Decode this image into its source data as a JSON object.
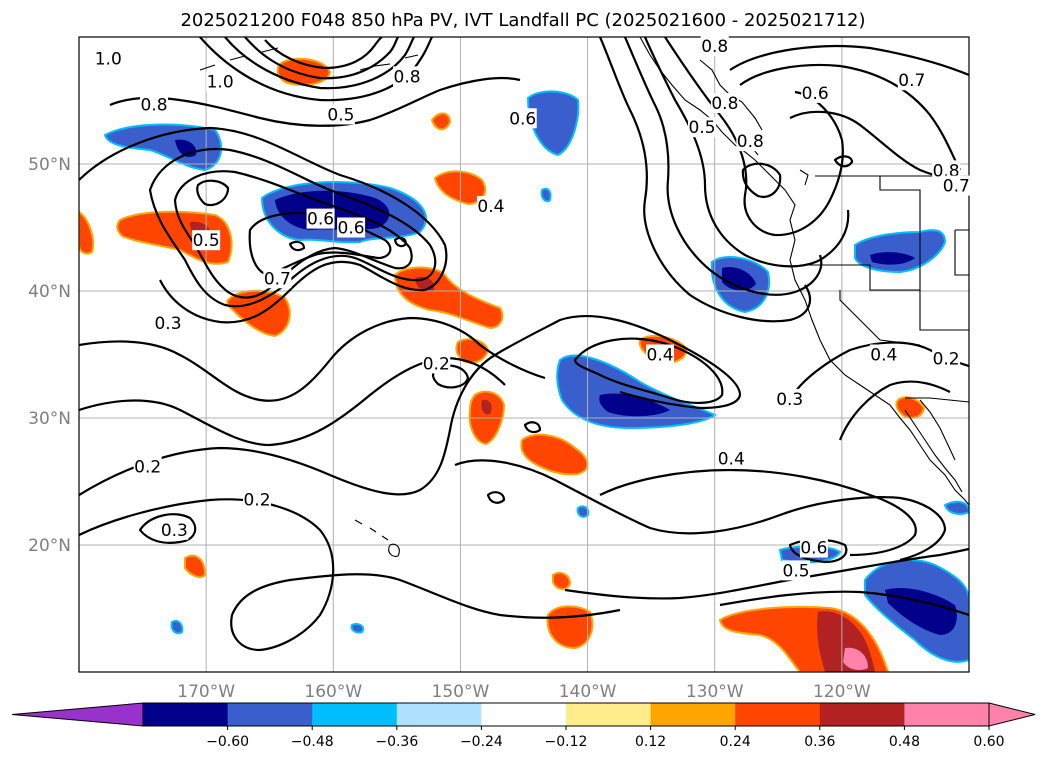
{
  "title": "2025021200 F048 850 hPa PV, IVT Landfall PC (2025021600 - 2025021712)",
  "lon_ticks": [
    {
      "value": -170,
      "label": "170°W"
    },
    {
      "value": -160,
      "label": "160°W"
    },
    {
      "value": -150,
      "label": "150°W"
    },
    {
      "value": -140,
      "label": "140°W"
    },
    {
      "value": -130,
      "label": "130°W"
    },
    {
      "value": -120,
      "label": "120°W"
    }
  ],
  "lat_ticks": [
    {
      "value": 20,
      "label": "20°N"
    },
    {
      "value": 30,
      "label": "30°N"
    },
    {
      "value": 40,
      "label": "40°N"
    },
    {
      "value": 50,
      "label": "50°N"
    }
  ],
  "extent": {
    "lon_min": -180,
    "lon_max": -110,
    "lat_min": 10,
    "lat_max": 60
  },
  "colorbar": {
    "colors": [
      "#9932cc",
      "#00008b",
      "#3a5fcd",
      "#00bfff",
      "#b0e2ff",
      "#ffffff",
      "#ffec8b",
      "#ffa500",
      "#ff4500",
      "#b22222",
      "#ff82ab",
      "#ff82ab"
    ],
    "tick_labels": [
      "−0.60",
      "−0.48",
      "−0.36",
      "−0.24",
      "−0.12",
      "0.12",
      "0.24",
      "0.36",
      "0.48",
      "0.60"
    ]
  },
  "contour_labels": [
    {
      "text": "1.0",
      "lon": -177.7,
      "lat": 58.3
    },
    {
      "text": "1.0",
      "lon": -168.9,
      "lat": 56.5
    },
    {
      "text": "0.8",
      "lon": -174.1,
      "lat": 54.7
    },
    {
      "text": "0.5",
      "lon": -159.4,
      "lat": 53.9
    },
    {
      "text": "0.8",
      "lon": -154.2,
      "lat": 56.9
    },
    {
      "text": "0.6",
      "lon": -145.1,
      "lat": 53.6
    },
    {
      "text": "0.8",
      "lon": -130.0,
      "lat": 59.3
    },
    {
      "text": "0.7",
      "lon": -114.5,
      "lat": 56.6
    },
    {
      "text": "0.6",
      "lon": -122.1,
      "lat": 55.6
    },
    {
      "text": "0.5",
      "lon": -131.0,
      "lat": 52.9
    },
    {
      "text": "0.8",
      "lon": -129.2,
      "lat": 54.8
    },
    {
      "text": "0.8",
      "lon": -127.2,
      "lat": 51.8
    },
    {
      "text": "0.8",
      "lon": -111.8,
      "lat": 49.5
    },
    {
      "text": "0.7",
      "lon": -111.0,
      "lat": 48.3
    },
    {
      "text": "0.4",
      "lon": -147.6,
      "lat": 46.7
    },
    {
      "text": "0.6",
      "lon": -161.0,
      "lat": 45.7
    },
    {
      "text": "0.6",
      "lon": -158.6,
      "lat": 45.0
    },
    {
      "text": "0.5",
      "lon": -170.0,
      "lat": 44.0
    },
    {
      "text": "0.7",
      "lon": -164.4,
      "lat": 41.0
    },
    {
      "text": "0.3",
      "lon": -173.0,
      "lat": 37.5
    },
    {
      "text": "0.2",
      "lon": -151.9,
      "lat": 34.3
    },
    {
      "text": "0.4",
      "lon": -134.3,
      "lat": 35.0
    },
    {
      "text": "0.4",
      "lon": -116.7,
      "lat": 35.0
    },
    {
      "text": "0.2",
      "lon": -111.8,
      "lat": 34.7
    },
    {
      "text": "0.3",
      "lon": -124.1,
      "lat": 31.5
    },
    {
      "text": "0.2",
      "lon": -174.6,
      "lat": 26.2
    },
    {
      "text": "0.2",
      "lon": -166.0,
      "lat": 23.6
    },
    {
      "text": "0.3",
      "lon": -172.5,
      "lat": 21.2
    },
    {
      "text": "0.4",
      "lon": -128.7,
      "lat": 26.8
    },
    {
      "text": "0.6",
      "lon": -122.2,
      "lat": 19.8
    },
    {
      "text": "0.5",
      "lon": -123.6,
      "lat": 18.0
    }
  ]
}
